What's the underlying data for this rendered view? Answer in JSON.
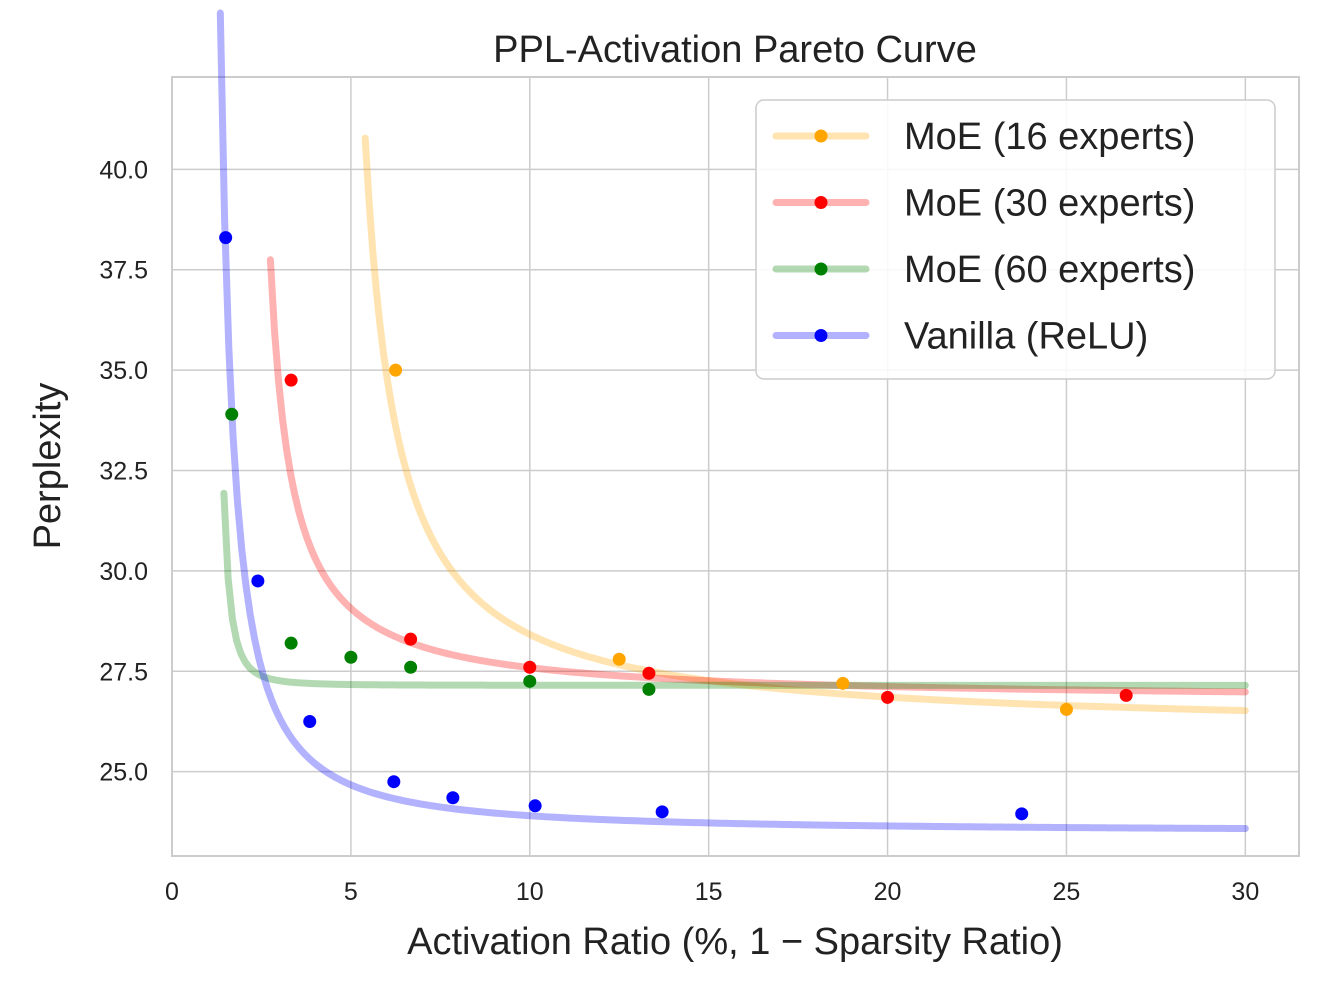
{
  "chart_data": {
    "type": "line",
    "title": "PPL-Activation Pareto Curve",
    "xlabel": "Activation Ratio (%, 1 − Sparsity Ratio)",
    "ylabel": "Perplexity",
    "xlim": [
      0,
      31.5
    ],
    "ylim": [
      22.9,
      42.3
    ],
    "xticks": [
      0,
      5,
      10,
      15,
      20,
      25,
      30
    ],
    "yticks": [
      25.0,
      27.5,
      30.0,
      32.5,
      35.0,
      37.5,
      40.0
    ],
    "ytick_labels": [
      "25.0",
      "27.5",
      "30.0",
      "32.5",
      "35.0",
      "37.5",
      "40.0"
    ],
    "grid": true,
    "legend_position": "top-right",
    "series": [
      {
        "name": "MoE (16 experts)",
        "color": "#ffa500",
        "points": [
          [
            6.25,
            35.0
          ],
          [
            12.5,
            27.8
          ],
          [
            18.75,
            27.2
          ],
          [
            25.0,
            26.55
          ]
        ],
        "fit": {
          "a": 26.0,
          "b": 13.3,
          "c": 4.5,
          "d": 1.0,
          "xmin": 5.4,
          "xmax": 30
        }
      },
      {
        "name": "MoE (30 experts)",
        "color": "#ff0000",
        "points": [
          [
            3.33,
            34.75
          ],
          [
            6.67,
            28.3
          ],
          [
            10.0,
            27.6
          ],
          [
            13.33,
            27.45
          ],
          [
            20.0,
            26.85
          ],
          [
            26.67,
            26.9
          ]
        ],
        "fit": {
          "a": 26.75,
          "b": 6.6,
          "c": 2.15,
          "d": 1.0,
          "xmin": 2.75,
          "xmax": 30
        }
      },
      {
        "name": "MoE (60 experts)",
        "color": "#008000",
        "points": [
          [
            1.67,
            33.9
          ],
          [
            3.33,
            28.2
          ],
          [
            5.0,
            27.85
          ],
          [
            6.67,
            27.6
          ],
          [
            10.0,
            27.25
          ],
          [
            13.33,
            27.05
          ]
        ],
        "fit": {
          "a": 27.15,
          "b": 0.65,
          "c": 1.0,
          "d": 2.5,
          "xmin": 1.45,
          "xmax": 30
        }
      },
      {
        "name": "Vanilla (ReLU)",
        "color": "#0000ff",
        "points": [
          [
            1.5,
            38.3
          ],
          [
            2.4,
            29.75
          ],
          [
            3.85,
            26.25
          ],
          [
            6.2,
            24.75
          ],
          [
            7.85,
            24.35
          ],
          [
            10.15,
            24.15
          ],
          [
            13.7,
            24.0
          ],
          [
            23.75,
            23.95
          ]
        ],
        "fit": {
          "a": 23.5,
          "b": 8.0,
          "c": 0.85,
          "d": 1.35,
          "xmin": 1.35,
          "xmax": 30
        }
      }
    ]
  }
}
